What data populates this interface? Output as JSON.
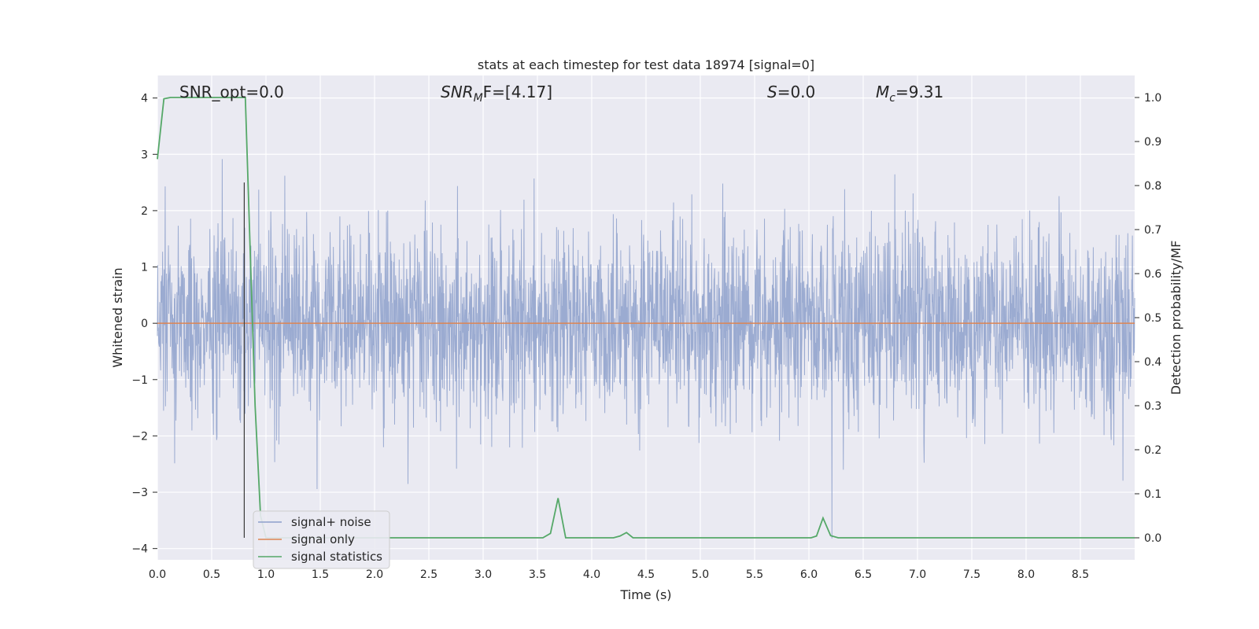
{
  "chart_data": {
    "type": "line",
    "title": "stats at each timestep for test data 18974 [signal=0]",
    "xlabel": "Time (s)",
    "ylabel": "Whitened strain",
    "y2label": "Detection probability/MF",
    "xlim": [
      0.0,
      9.0
    ],
    "ylim": [
      -4.2,
      4.4
    ],
    "y2lim": [
      -0.05,
      1.05
    ],
    "x_ticks": [
      "0.0",
      "0.5",
      "1.0",
      "1.5",
      "2.0",
      "2.5",
      "3.0",
      "3.5",
      "4.0",
      "4.5",
      "5.0",
      "5.5",
      "6.0",
      "6.5",
      "7.0",
      "7.5",
      "8.0",
      "8.5"
    ],
    "y_ticks": [
      "4",
      "3",
      "2",
      "1",
      "0",
      "−1",
      "−2",
      "−3",
      "−4"
    ],
    "y2_ticks": [
      "1.0",
      "0.9",
      "0.8",
      "0.7",
      "0.6",
      "0.5",
      "0.4",
      "0.3",
      "0.2",
      "0.1",
      "0.0"
    ],
    "grid": true,
    "legend_placement": "lower-left",
    "annotations": {
      "snr_opt": "SNR_opt=0.0",
      "snr_mf_base": "SNR",
      "snr_mf_sub": "M",
      "snr_mf_tail": "F=[4.17]",
      "s_var": "S",
      "s_val": "=0.0",
      "mc_var": "M",
      "mc_sub": "c",
      "mc_val": "=9.31"
    },
    "marker_line_x": 0.8,
    "series": [
      {
        "name": "signal+ noise",
        "color": "#8da0cb",
        "description_kind": "noise",
        "noise_sigma": 0.85,
        "n_points": 3000
      },
      {
        "name": "signal only",
        "color": "#dd8452",
        "x": [
          0.0,
          9.0
        ],
        "y": [
          0.0,
          0.0
        ]
      },
      {
        "name": "signal statistics",
        "color": "#55a868",
        "axis": "right",
        "x": [
          0.0,
          0.06,
          0.12,
          0.3,
          0.5,
          0.7,
          0.79,
          0.81,
          0.9,
          0.95,
          1.0,
          1.5,
          2.0,
          2.5,
          3.0,
          3.55,
          3.62,
          3.69,
          3.76,
          3.82,
          4.2,
          4.26,
          4.32,
          4.38,
          4.5,
          5.5,
          6.02,
          6.07,
          6.13,
          6.2,
          6.27,
          7.0,
          8.0,
          9.0
        ],
        "y": [
          0.86,
          0.997,
          1.0,
          1.0,
          1.0,
          1.0,
          1.0,
          1.0,
          0.3,
          0.05,
          0.0,
          0.0,
          0.0,
          0.0,
          0.0,
          0.0,
          0.01,
          0.09,
          0.0,
          0.0,
          0.0,
          0.004,
          0.012,
          0.0,
          0.0,
          0.0,
          0.0,
          0.004,
          0.045,
          0.005,
          0.0,
          0.0,
          0.0,
          0.0
        ]
      }
    ]
  }
}
